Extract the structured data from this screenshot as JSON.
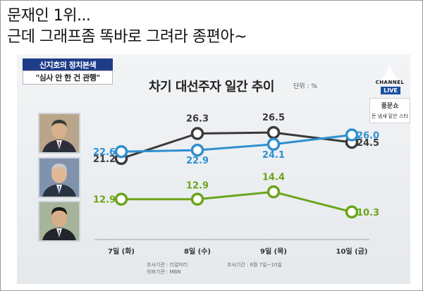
{
  "caption": {
    "line1": "문재인 1위...",
    "line2": "근데 그래프좀 똑바로 그려라 종편아~"
  },
  "show_tag": {
    "top": "신지호의 정치본색",
    "bottom": "\"심사 안 한 건 관행\""
  },
  "channel": {
    "name": "CHANNEL",
    "live": "LIVE"
  },
  "promo": {
    "name": "풍문쇼",
    "sub": "돈 냄새 맡은 스타"
  },
  "source": {
    "agency": "조사기관 : 리얼미터",
    "client": "의뢰기관 : MBN",
    "period": "조사기간 : 6월 7일~10일"
  },
  "colors": {
    "black_series": "#3a3a3a",
    "blue_series": "#2f8fd0",
    "green_series": "#6aa51b"
  },
  "chart_data": {
    "type": "line",
    "title": "차기 대선주자 일간 추이",
    "unit": "단위 : %",
    "categories": [
      "7일 (화)",
      "8일 (수)",
      "9일 (목)",
      "10일 (금)"
    ],
    "series": [
      {
        "color": "#3a3a3a",
        "values": [
          21.2,
          26.3,
          26.5,
          24.5
        ]
      },
      {
        "color": "#2f8fd0",
        "values": [
          22.6,
          22.9,
          24.1,
          26.0
        ]
      },
      {
        "color": "#6aa51b",
        "values": [
          12.9,
          12.9,
          14.4,
          10.3
        ]
      }
    ],
    "legend": "avatars-left",
    "grid": false
  }
}
